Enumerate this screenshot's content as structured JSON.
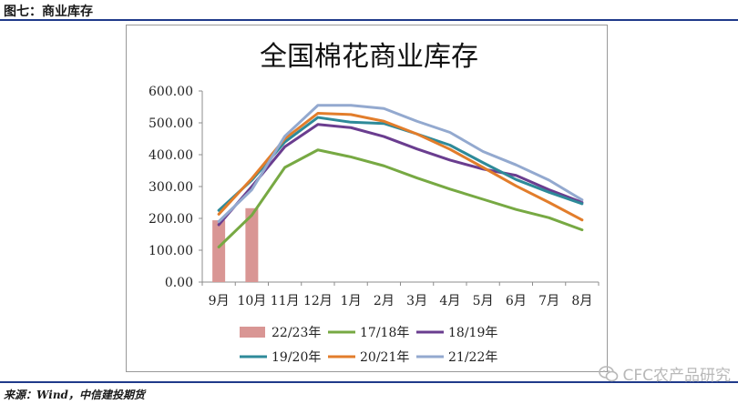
{
  "figure": {
    "header": "图七：商业库存",
    "source": "来源：Wind，中信建投期货",
    "watermark": "CFC农产品研究"
  },
  "colors": {
    "bar": "#d99694",
    "s1718": "#77a943",
    "s1819": "#6a3d8f",
    "s1920": "#2e8a99",
    "s2021": "#e27d2b",
    "s2122": "#93a9cf",
    "rule": "#1f3a8a"
  },
  "chart_data": {
    "type": "bar+line",
    "title": "全国棉花商业库存",
    "categories": [
      "9月",
      "10月",
      "11月",
      "12月",
      "1月",
      "2月",
      "3月",
      "4月",
      "5月",
      "6月",
      "7月",
      "8月"
    ],
    "ylim": [
      0,
      600
    ],
    "yticks": [
      "0.00",
      "100.00",
      "200.00",
      "300.00",
      "400.00",
      "500.00",
      "600.00"
    ],
    "grid": false,
    "legend": "bottom",
    "bars": {
      "name": "22/23年",
      "values": [
        194,
        232,
        null,
        null,
        null,
        null,
        null,
        null,
        null,
        null,
        null,
        null
      ]
    },
    "series": [
      {
        "name": "17/18年",
        "values": [
          110,
          210,
          360,
          415,
          393,
          365,
          327,
          292,
          260,
          228,
          202,
          164
        ]
      },
      {
        "name": "18/19年",
        "values": [
          180,
          300,
          425,
          495,
          485,
          457,
          418,
          383,
          355,
          335,
          290,
          250
        ]
      },
      {
        "name": "19/20年",
        "values": [
          225,
          320,
          440,
          517,
          502,
          498,
          465,
          430,
          375,
          322,
          282,
          246
        ]
      },
      {
        "name": "20/21年",
        "values": [
          213,
          325,
          450,
          530,
          526,
          505,
          465,
          417,
          360,
          302,
          250,
          195
        ]
      },
      {
        "name": "21/22年",
        "values": [
          190,
          290,
          458,
          555,
          555,
          545,
          505,
          470,
          410,
          368,
          320,
          258
        ]
      }
    ]
  }
}
